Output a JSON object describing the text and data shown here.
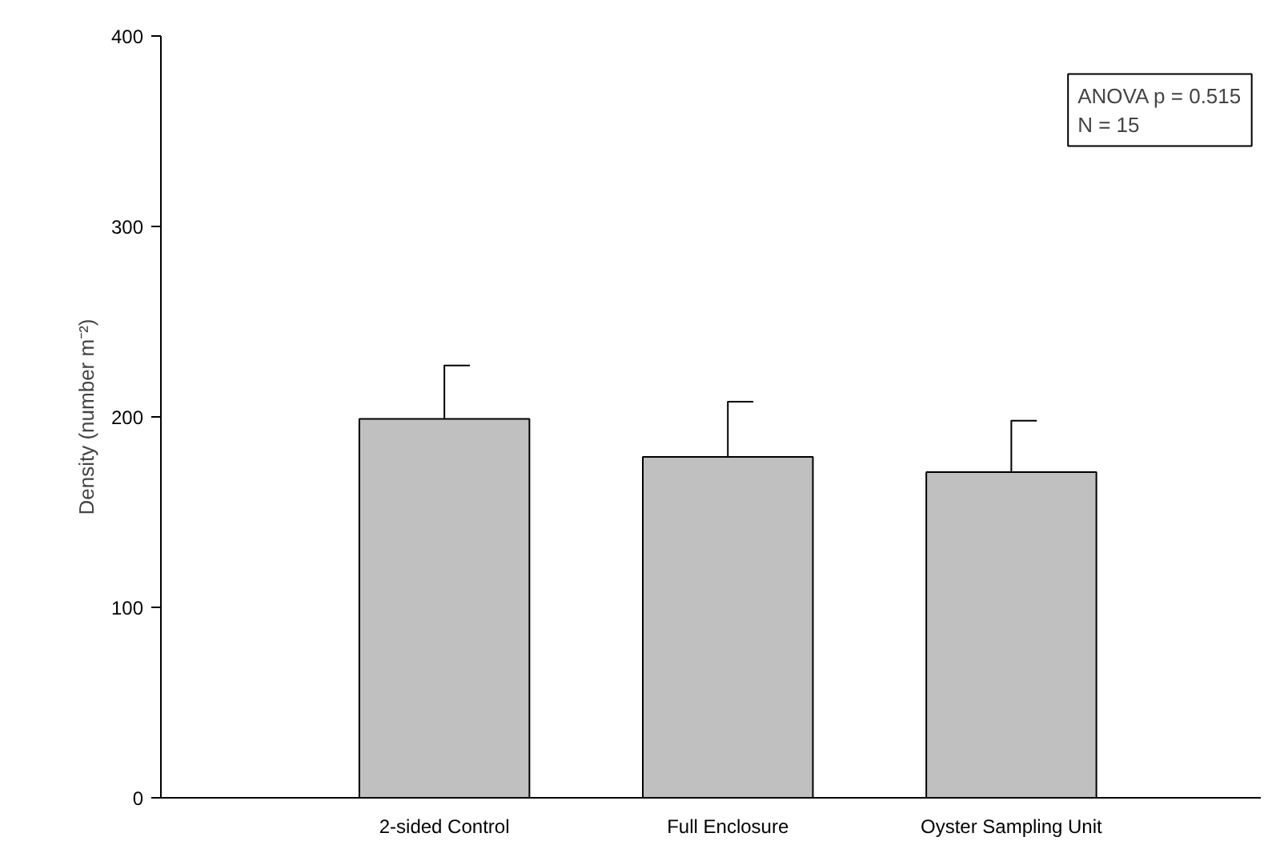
{
  "chart_data": {
    "type": "bar",
    "ylabel": "Density (number m⁻²)",
    "categories": [
      "2-sided Control",
      "Full Enclosure",
      "Oyster Sampling Unit"
    ],
    "values": [
      199,
      179,
      171
    ],
    "errors": [
      [
        199,
        227
      ],
      [
        179,
        208
      ],
      [
        171,
        198
      ]
    ],
    "color": "#c0c0c0",
    "ylim": [
      0,
      400
    ],
    "yticks": [
      0,
      100,
      200,
      300,
      400
    ],
    "grid": false,
    "annotations": [
      "ANOVA p = 0.515",
      "N = 15"
    ]
  }
}
